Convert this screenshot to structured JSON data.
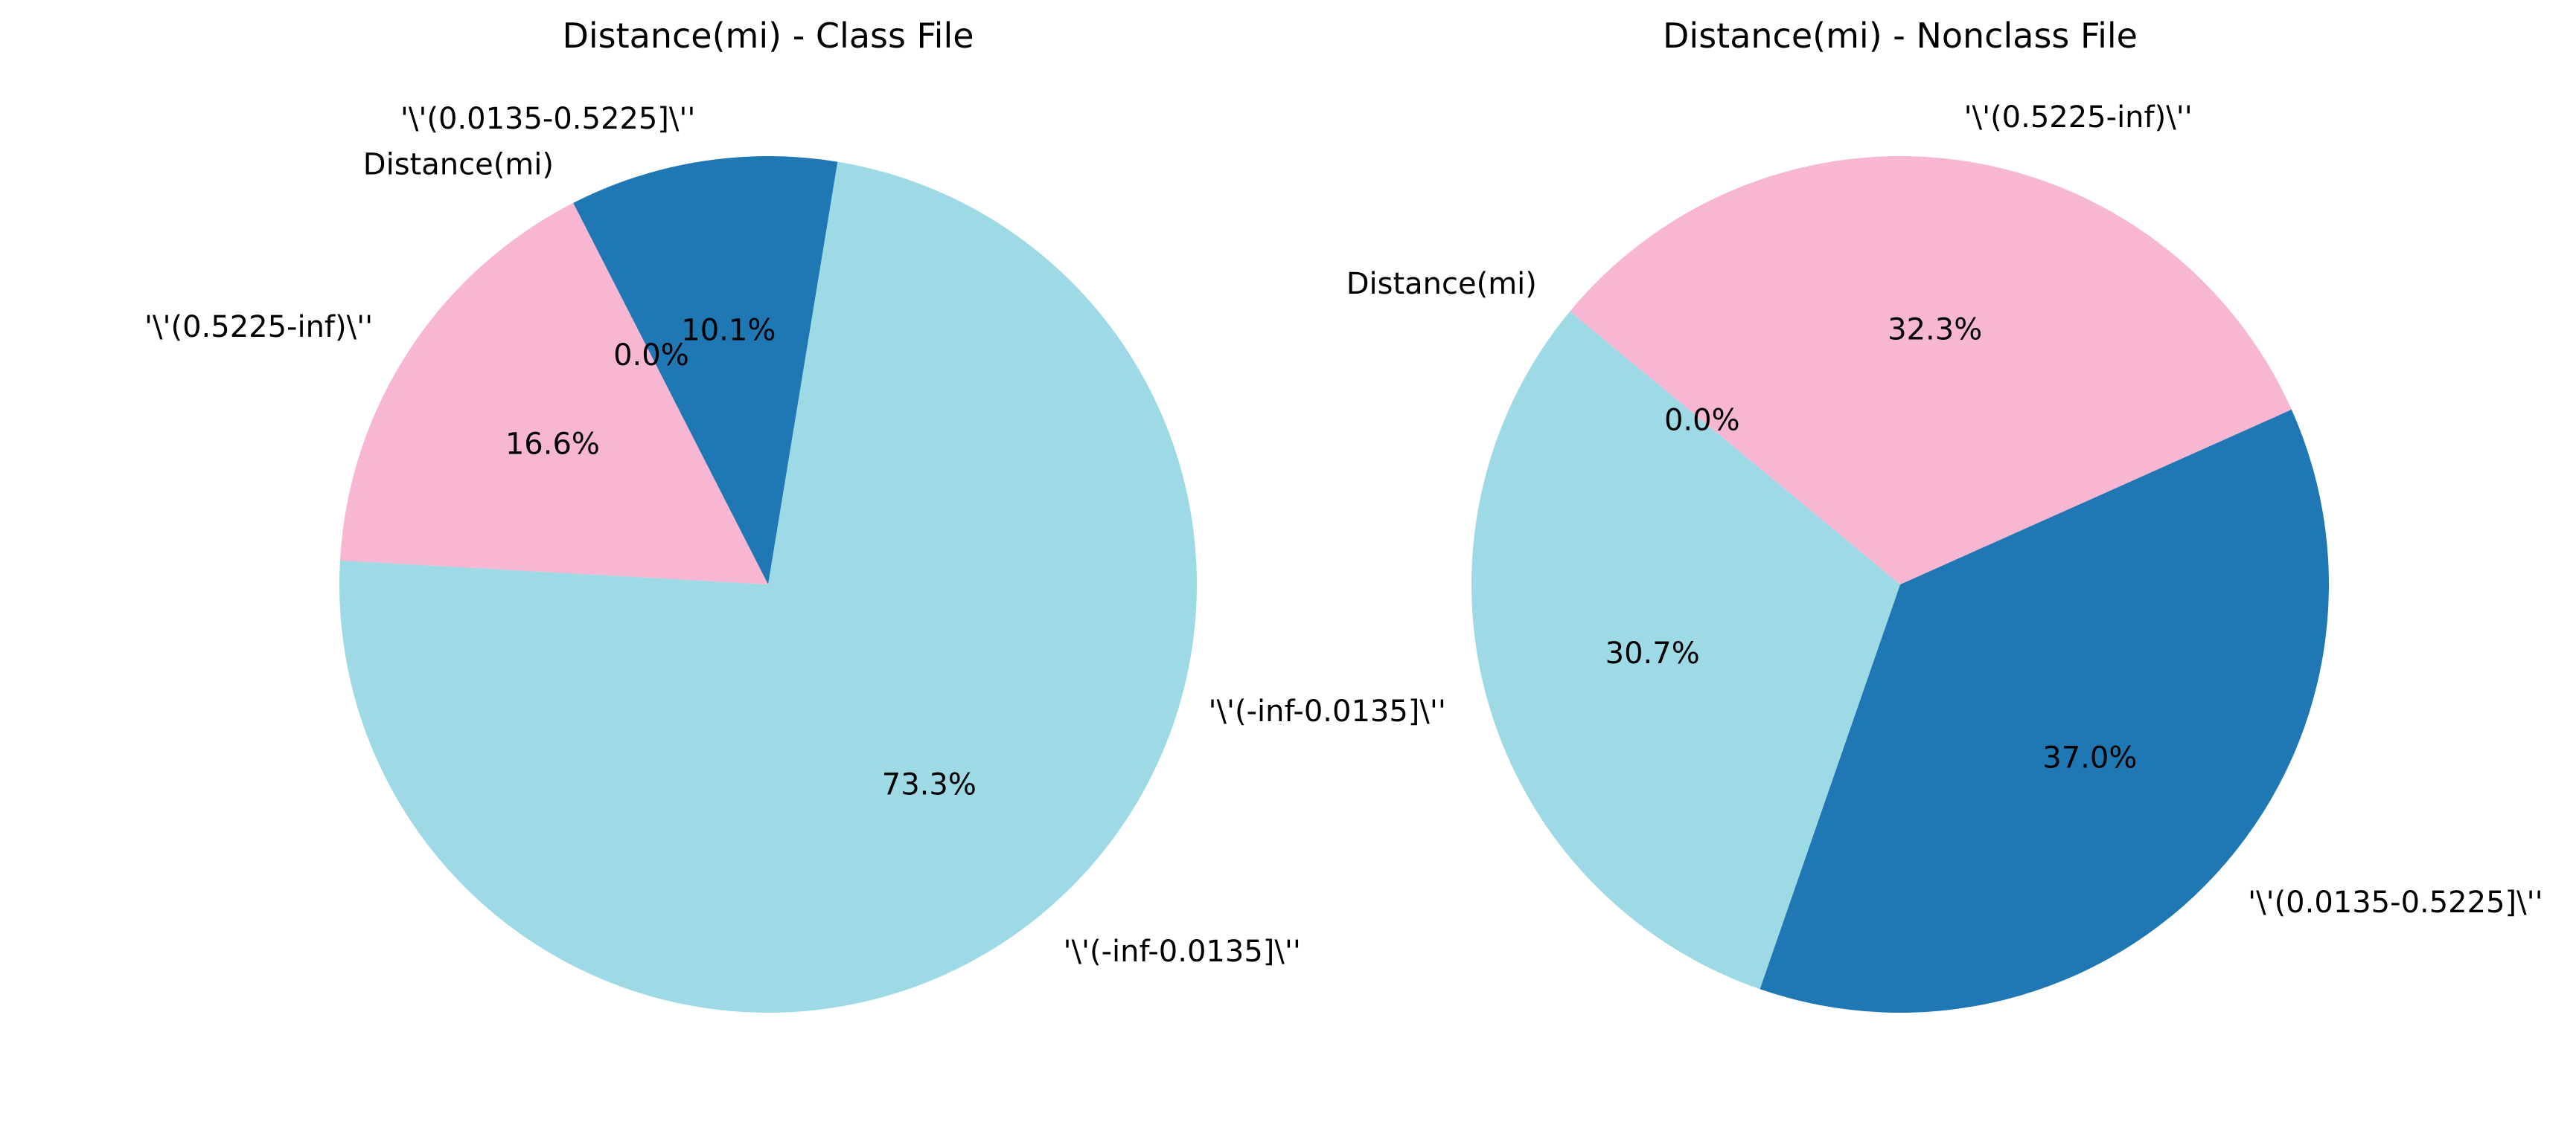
{
  "chart_data": [
    {
      "type": "pie",
      "title": "Distance(mi) - Class File",
      "slices": [
        {
          "label": "'\\'(-inf-0.0135]\\''",
          "value": 73.3,
          "pct_label": "73.3%",
          "color": "#9edae5"
        },
        {
          "label": "'\\'(0.0135-0.5225]\\''",
          "value": 10.1,
          "pct_label": "10.1%",
          "color": "#1f77b4"
        },
        {
          "label": "Distance(mi)",
          "value": 0.0,
          "pct_label": "0.0%",
          "color": "#ffffff"
        },
        {
          "label": "'\\'(0.5225-inf)\\''",
          "value": 16.6,
          "pct_label": "16.6%",
          "color": "#f7b6d2"
        }
      ],
      "start_angle_deg": 176.8,
      "direction": "counterclockwise"
    },
    {
      "type": "pie",
      "title": "Distance(mi) - Nonclass File",
      "slices": [
        {
          "label": "'\\'(0.0135-0.5225]\\''",
          "value": 37.0,
          "pct_label": "37.0%",
          "color": "#1f77b4"
        },
        {
          "label": "'\\'(-inf-0.0135]\\''",
          "value": 30.7,
          "pct_label": "30.7%",
          "color": "#9edae5"
        },
        {
          "label": "Distance(mi)",
          "value": 0.0,
          "pct_label": "0.0%",
          "color": "#ffffff"
        },
        {
          "label": "'\\'(0.5225-inf)\\''",
          "value": 32.3,
          "pct_label": "32.3%",
          "color": "#f7b6d2"
        }
      ],
      "start_angle_deg": 24.1,
      "direction": "clockwise"
    }
  ]
}
